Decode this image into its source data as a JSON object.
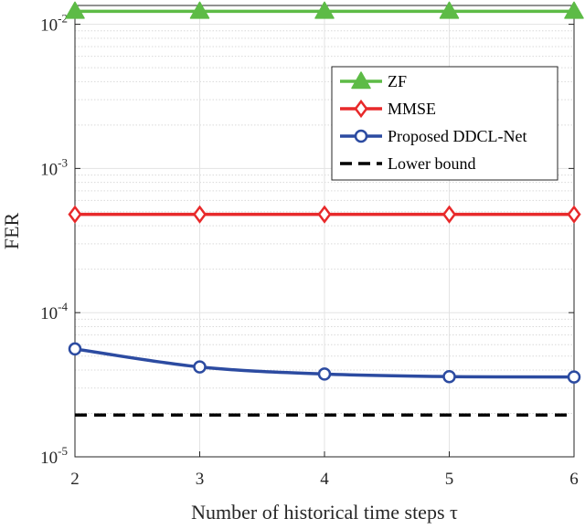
{
  "chart_data": {
    "type": "line",
    "xlabel": "Number of historical time steps τ",
    "ylabel": "FER",
    "y_scale": "log",
    "xlim": [
      2,
      6
    ],
    "ylim": [
      1e-05,
      0.0135
    ],
    "x_ticks": [
      2,
      3,
      4,
      5,
      6
    ],
    "x_tick_labels": [
      "2",
      "3",
      "4",
      "5",
      "6"
    ],
    "y_ticks": [
      1e-05,
      0.0001,
      0.001,
      0.01
    ],
    "y_tick_labels": [
      {
        "base": "10",
        "exp": "-5"
      },
      {
        "base": "10",
        "exp": "-4"
      },
      {
        "base": "10",
        "exp": "-3"
      },
      {
        "base": "10",
        "exp": "-2"
      }
    ],
    "grid": true,
    "minor_grid": true,
    "legend_position": "upper-right",
    "x": [
      2,
      3,
      4,
      5,
      6
    ],
    "series": [
      {
        "name": "ZF",
        "values": [
          0.0123,
          0.0123,
          0.0123,
          0.0123,
          0.0123
        ],
        "color": "#5dbb46",
        "marker": "triangle",
        "line": "solid"
      },
      {
        "name": "MMSE",
        "values": [
          0.00048,
          0.00048,
          0.00048,
          0.00048,
          0.00048
        ],
        "color": "#e8292a",
        "marker": "diamond",
        "line": "solid"
      },
      {
        "name": "Proposed DDCL-Net",
        "values": [
          5.6e-05,
          4.2e-05,
          3.75e-05,
          3.6e-05,
          3.58e-05
        ],
        "color": "#2c4ba1",
        "marker": "circle",
        "line": "solid"
      },
      {
        "name": "Lower bound",
        "values": [
          1.95e-05,
          1.95e-05,
          1.95e-05,
          1.95e-05,
          1.95e-05
        ],
        "color": "#000000",
        "marker": "none",
        "line": "dashed"
      }
    ]
  }
}
